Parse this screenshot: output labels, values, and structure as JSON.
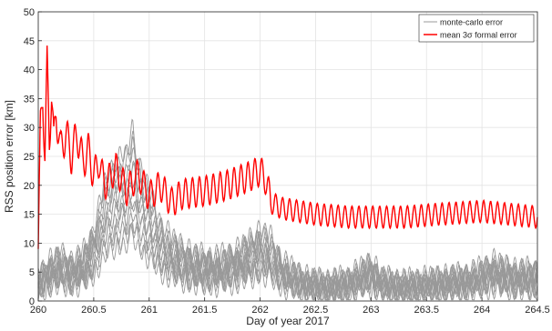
{
  "chart_data": {
    "type": "line",
    "xlabel": "Day of year 2017",
    "ylabel": "RSS position error [km]",
    "xlim": [
      260,
      264.5
    ],
    "ylim": [
      0,
      50
    ],
    "xticks": [
      260,
      260.5,
      261,
      261.5,
      262,
      262.5,
      263,
      263.5,
      264,
      264.5
    ],
    "xtick_labels": [
      "260",
      "260.5",
      "261",
      "261.5",
      "262",
      "262.5",
      "263",
      "263.5",
      "264",
      "264.5"
    ],
    "yticks": [
      0,
      5,
      10,
      15,
      20,
      25,
      30,
      35,
      40,
      45,
      50
    ],
    "ytick_labels": [
      "0",
      "5",
      "10",
      "15",
      "20",
      "25",
      "30",
      "35",
      "40",
      "45",
      "50"
    ],
    "grid": true,
    "legend_position": "top-right",
    "legend": [
      {
        "label": "monte-carlo error",
        "color": "#999999"
      },
      {
        "label": "mean 3σ formal error",
        "color": "#ff0000"
      }
    ],
    "series": [
      {
        "name": "mean 3σ formal error",
        "color": "#ff0000",
        "points": [
          [
            260.0,
            9
          ],
          [
            260.02,
            30
          ],
          [
            260.04,
            36
          ],
          [
            260.06,
            25
          ],
          [
            260.08,
            41
          ],
          [
            260.1,
            28
          ],
          [
            260.12,
            36
          ],
          [
            260.14,
            27
          ],
          [
            260.16,
            33
          ],
          [
            260.2,
            26
          ],
          [
            260.25,
            29
          ],
          [
            260.3,
            25
          ],
          [
            260.35,
            29
          ],
          [
            260.4,
            24
          ],
          [
            260.45,
            26
          ],
          [
            260.5,
            22
          ],
          [
            260.55,
            24
          ],
          [
            260.6,
            20
          ],
          [
            260.7,
            23
          ],
          [
            260.8,
            19
          ],
          [
            260.9,
            22
          ],
          [
            261.0,
            18
          ],
          [
            261.1,
            20
          ],
          [
            261.2,
            17
          ],
          [
            261.3,
            18.5
          ],
          [
            261.5,
            19
          ],
          [
            261.7,
            20
          ],
          [
            261.9,
            21.5
          ],
          [
            262.0,
            22.5
          ],
          [
            262.05,
            21
          ],
          [
            262.1,
            17
          ],
          [
            262.2,
            16
          ],
          [
            262.5,
            15
          ],
          [
            262.8,
            14.5
          ],
          [
            263.0,
            14.5
          ],
          [
            263.3,
            14.5
          ],
          [
            263.6,
            15
          ],
          [
            264.0,
            15.5
          ],
          [
            264.5,
            14.5
          ]
        ]
      },
      {
        "name": "monte-carlo error",
        "color": "#999999",
        "points": [
          [
            260.0,
            3
          ],
          [
            260.1,
            5
          ],
          [
            260.2,
            6
          ],
          [
            260.3,
            5
          ],
          [
            260.4,
            6
          ],
          [
            260.5,
            9
          ],
          [
            260.6,
            15
          ],
          [
            260.7,
            18
          ],
          [
            260.8,
            19
          ],
          [
            260.85,
            22
          ],
          [
            260.9,
            18
          ],
          [
            261.0,
            14
          ],
          [
            261.1,
            10
          ],
          [
            261.2,
            8
          ],
          [
            261.4,
            6
          ],
          [
            261.6,
            5.5
          ],
          [
            261.8,
            6.5
          ],
          [
            262.0,
            9
          ],
          [
            262.1,
            8
          ],
          [
            262.2,
            5
          ],
          [
            262.4,
            3
          ],
          [
            262.6,
            2.5
          ],
          [
            262.8,
            3
          ],
          [
            263.0,
            5
          ],
          [
            263.1,
            3
          ],
          [
            263.3,
            2.5
          ],
          [
            263.6,
            3
          ],
          [
            263.9,
            3.5
          ],
          [
            264.1,
            5
          ],
          [
            264.3,
            4
          ],
          [
            264.5,
            4
          ]
        ]
      }
    ]
  }
}
